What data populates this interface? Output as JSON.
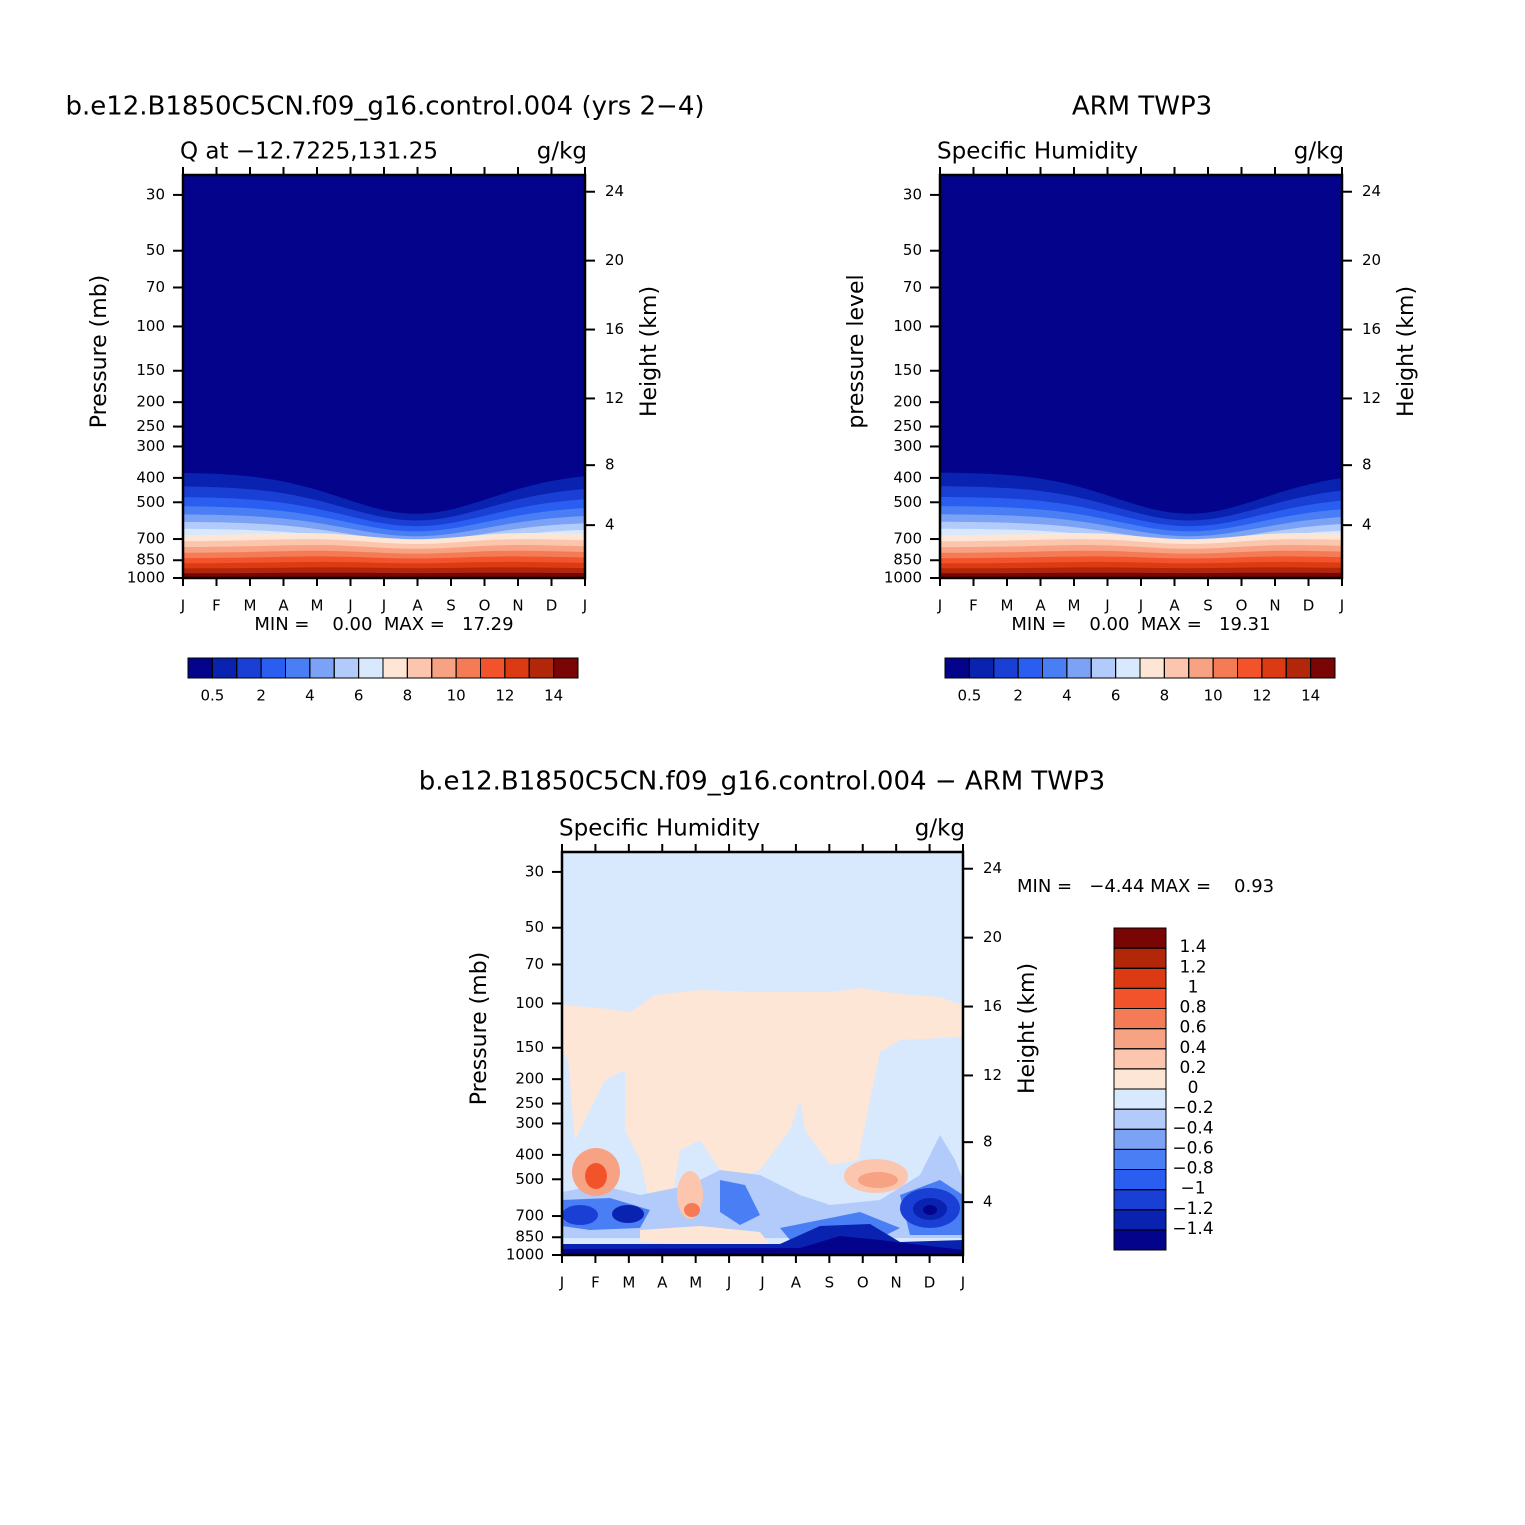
{
  "chart_data": [
    {
      "type": "contour",
      "title": "b.e12.B1850C5CN.f09_g16.control.004 (yrs 2−4)",
      "subtitle_left": "Q at −12.7225,131.25",
      "subtitle_right": "g/kg",
      "ylabel": "Pressure (mb)",
      "y2label": "Height (km)",
      "stats": "MIN =    0.00  MAX =   17.29",
      "categories": [
        "J",
        "F",
        "M",
        "A",
        "M",
        "J",
        "J",
        "A",
        "S",
        "O",
        "N",
        "D",
        "J"
      ],
      "ylim": [
        1000,
        25
      ],
      "log_y": true,
      "yticks": [
        30,
        50,
        70,
        100,
        150,
        200,
        250,
        300,
        400,
        500,
        700,
        850,
        1000
      ],
      "y2ticks": [
        4,
        8,
        12,
        16,
        20,
        24
      ],
      "colorbar": {
        "levels": [
          0.5,
          1,
          2,
          3,
          4,
          5,
          6,
          7,
          8,
          9,
          10,
          11,
          12,
          13,
          14
        ],
        "colors": [
          "#03038c",
          "#0a22b0",
          "#1a3fd4",
          "#2a5ef0",
          "#4a7ef4",
          "#7ca2f6",
          "#b2cbfa",
          "#d8e8fd",
          "#fde6d6",
          "#fbc6ad",
          "#f8a284",
          "#f57b57",
          "#f2532b",
          "#dc3a12",
          "#b2260a",
          "#7a0505"
        ]
      }
    },
    {
      "type": "contour",
      "title": "ARM TWP3",
      "subtitle_left": "Specific Humidity",
      "subtitle_right": "g/kg",
      "ylabel": "pressure level",
      "y2label": "Height (km)",
      "stats": "MIN =    0.00  MAX =   19.31",
      "categories": [
        "J",
        "F",
        "M",
        "A",
        "M",
        "J",
        "J",
        "A",
        "S",
        "O",
        "N",
        "D",
        "J"
      ],
      "ylim": [
        1000,
        25
      ],
      "log_y": true,
      "yticks": [
        30,
        50,
        70,
        100,
        150,
        200,
        250,
        300,
        400,
        500,
        700,
        850,
        1000
      ],
      "y2ticks": [
        4,
        8,
        12,
        16,
        20,
        24
      ],
      "colorbar": {
        "levels": [
          0.5,
          1,
          2,
          3,
          4,
          5,
          6,
          7,
          8,
          9,
          10,
          11,
          12,
          13,
          14
        ],
        "colors": [
          "#03038c",
          "#0a22b0",
          "#1a3fd4",
          "#2a5ef0",
          "#4a7ef4",
          "#7ca2f6",
          "#b2cbfa",
          "#d8e8fd",
          "#fde6d6",
          "#fbc6ad",
          "#f8a284",
          "#f57b57",
          "#f2532b",
          "#dc3a12",
          "#b2260a",
          "#7a0505"
        ]
      }
    },
    {
      "type": "contour",
      "title": "b.e12.B1850C5CN.f09_g16.control.004 − ARM TWP3",
      "subtitle_left": "Specific Humidity",
      "subtitle_right": "g/kg",
      "ylabel": "Pressure (mb)",
      "y2label": "Height (km)",
      "stats": "MIN =   −4.44 MAX =    0.93",
      "categories": [
        "J",
        "F",
        "M",
        "A",
        "M",
        "J",
        "J",
        "A",
        "S",
        "O",
        "N",
        "D",
        "J"
      ],
      "ylim": [
        1000,
        25
      ],
      "log_y": true,
      "yticks": [
        30,
        50,
        70,
        100,
        150,
        200,
        250,
        300,
        400,
        500,
        700,
        850,
        1000
      ],
      "y2ticks": [
        4,
        8,
        12,
        16,
        20,
        24
      ],
      "colorbar": {
        "levels": [
          {
            "value": -1.4,
            "label": "−1.4"
          },
          {
            "value": -1.2,
            "label": "−1.2"
          },
          {
            "value": -1,
            "label": "−1"
          },
          {
            "value": -0.8,
            "label": "−0.8"
          },
          {
            "value": -0.6,
            "label": "−0.6"
          },
          {
            "value": -0.4,
            "label": "−0.4"
          },
          {
            "value": -0.2,
            "label": "−0.2"
          },
          0,
          0.2,
          0.4,
          0.6,
          0.8,
          1,
          1.2,
          1.4
        ],
        "colors": [
          "#03038c",
          "#0a22b0",
          "#1a3fd4",
          "#2a5ef0",
          "#4a7ef4",
          "#7ca2f6",
          "#b2cbfa",
          "#d8e8fd",
          "#fde6d6",
          "#fbc6ad",
          "#f8a284",
          "#f57b57",
          "#f2532b",
          "#dc3a12",
          "#b2260a",
          "#7a0505"
        ]
      }
    }
  ]
}
